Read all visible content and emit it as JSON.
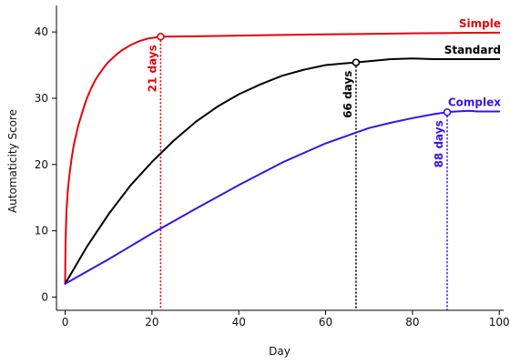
{
  "chart_data": {
    "type": "line",
    "title": "",
    "xlabel": "Day",
    "ylabel": "Automaticity Score",
    "xlim": [
      -2,
      101
    ],
    "ylim": [
      -2,
      44
    ],
    "xticks": [
      0,
      20,
      40,
      60,
      80,
      100
    ],
    "yticks": [
      0,
      10,
      20,
      30,
      40
    ],
    "grid": false,
    "series": [
      {
        "name": "Simple",
        "color": "#e8000b",
        "x": [
          0,
          0.1,
          0.3,
          0.6,
          1,
          1.5,
          2,
          3,
          4,
          5,
          6,
          7,
          8,
          9,
          10,
          11,
          12,
          13,
          14,
          15,
          16,
          17,
          18,
          19,
          20,
          21,
          22,
          30,
          40,
          50,
          60,
          70,
          80,
          90,
          100
        ],
        "y": [
          2,
          8.5,
          13,
          16,
          18.5,
          21,
          23,
          25.8,
          28,
          30,
          31.5,
          32.8,
          33.8,
          34.7,
          35.5,
          36.1,
          36.7,
          37.2,
          37.6,
          38,
          38.3,
          38.6,
          38.8,
          39,
          39.1,
          39.2,
          39.3,
          39.35,
          39.45,
          39.55,
          39.65,
          39.7,
          39.8,
          39.85,
          39.9
        ],
        "marker": {
          "x": 22,
          "y": 39.3,
          "label": "21 days"
        }
      },
      {
        "name": "Standard",
        "color": "#000000",
        "x": [
          0,
          5,
          10,
          15,
          20,
          25,
          30,
          35,
          40,
          45,
          50,
          55,
          60,
          65,
          67,
          70,
          75,
          80,
          85,
          90,
          95,
          100
        ],
        "y": [
          2,
          7.6,
          12.5,
          16.8,
          20.4,
          23.6,
          26.4,
          28.7,
          30.6,
          32.1,
          33.4,
          34.3,
          35,
          35.3,
          35.4,
          35.6,
          35.9,
          36,
          35.9,
          35.9,
          35.9,
          35.9
        ],
        "marker": {
          "x": 67,
          "y": 35.4,
          "label": "66 days"
        }
      },
      {
        "name": "Complex",
        "color": "#3a12e8",
        "x": [
          0,
          10,
          20,
          30,
          40,
          50,
          60,
          70,
          75,
          80,
          85,
          88,
          90,
          93,
          95,
          100
        ],
        "y": [
          2,
          5.7,
          9.6,
          13.3,
          16.9,
          20.3,
          23.2,
          25.5,
          26.3,
          27,
          27.6,
          27.9,
          28,
          28.1,
          28,
          28
        ],
        "marker": {
          "x": 88,
          "y": 27.9,
          "label": "88 days"
        }
      }
    ]
  }
}
